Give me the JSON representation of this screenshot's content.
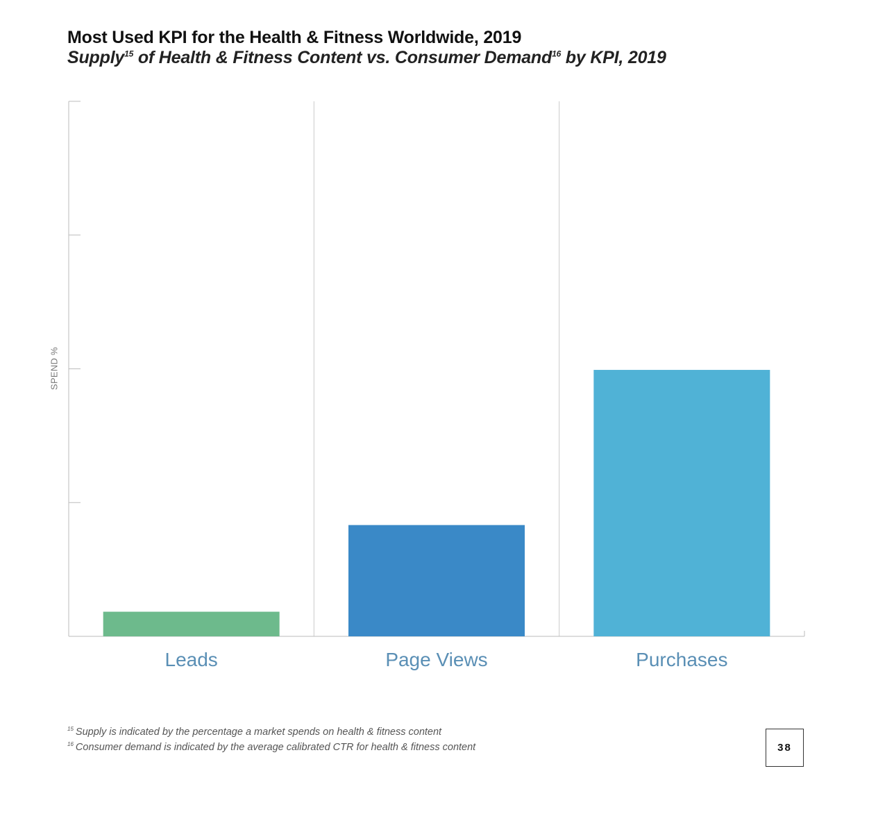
{
  "header": {
    "title": "Most Used KPI for the Health & Fitness Worldwide, 2019",
    "subtitle_parts": {
      "a": "Supply",
      "sup_a": "15",
      "b": " of Health & Fitness Content vs. Consumer Demand",
      "sup_b": "16",
      "c": " by KPI, 2019"
    }
  },
  "footnotes": [
    {
      "num": "15",
      "text": "Supply is indicated by the percentage a market spends on health & fitness content"
    },
    {
      "num": "16",
      "text": "Consumer demand is indicated by the average calibrated CTR for health & fitness content"
    }
  ],
  "page_number": "38",
  "colors": {
    "leads": "#6dba8c",
    "page_views": "#3a89c7",
    "purchases": "#50b2d6",
    "category_label": "#5a8fb5",
    "axis": "#bbbbbb"
  },
  "chart_data": {
    "type": "bar",
    "ylabel": "SPEND %",
    "categories": [
      "Leads",
      "Page Views",
      "Purchases"
    ],
    "values": [
      4.6,
      20.8,
      49.8
    ],
    "ylim": [
      0,
      100
    ],
    "y_ticks": [
      0,
      25,
      50,
      75,
      100
    ],
    "y_tick_labels_shown": false,
    "grid": false,
    "legend": "none"
  }
}
